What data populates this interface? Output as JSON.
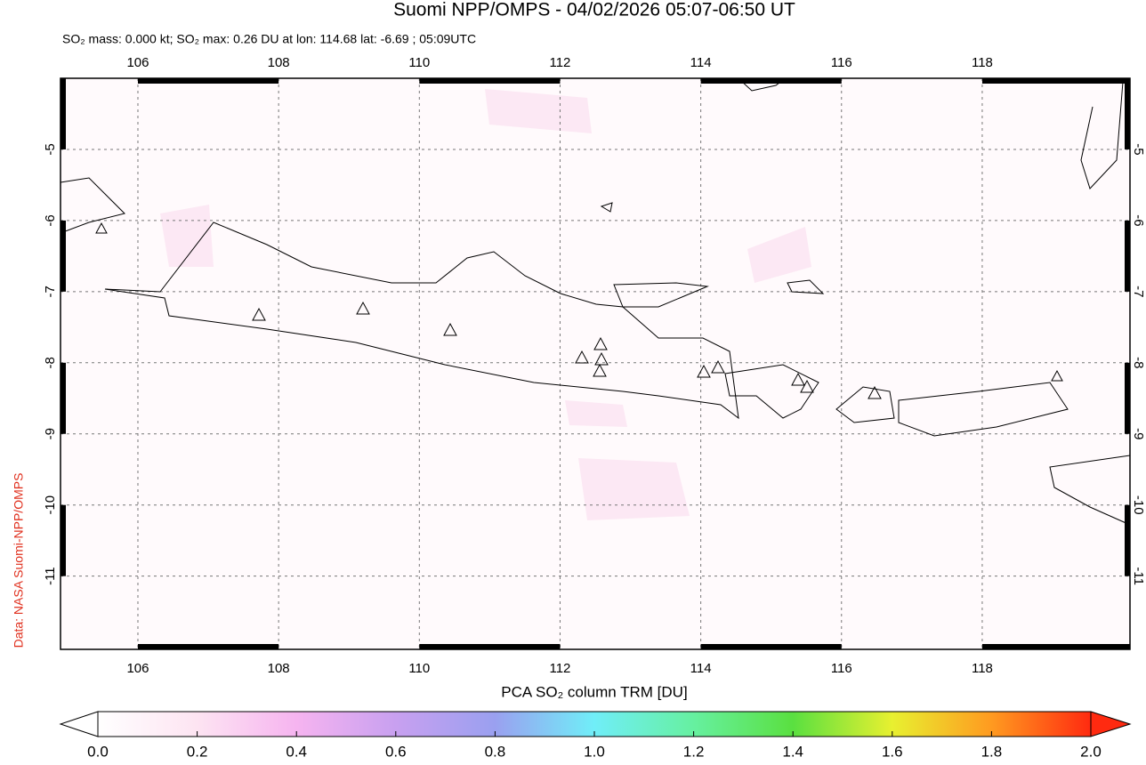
{
  "chart_data": {
    "type": "map",
    "title": "Suomi NPP/OMPS - 04/02/2026 05:07-06:50 UT",
    "subtitle": "SO₂ mass: 0.000 kt; SO₂ max: 0.26 DU at lon: 114.68 lat: -6.69 ; 05:09UTC",
    "side_label": "Data: NASA Suomi-NPP/OMPS",
    "xlim": [
      104.9,
      120.1
    ],
    "ylim": [
      -12.03,
      -4.0
    ],
    "xticks": [
      106,
      108,
      110,
      112,
      114,
      116,
      118
    ],
    "yticks": [
      -5,
      -6,
      -7,
      -8,
      -9,
      -10,
      -11
    ],
    "grid": true,
    "colorbar": {
      "label": "PCA SO₂ column TRM [DU]",
      "lim": [
        0,
        2
      ],
      "ticks": [
        {
          "value": 0,
          "label": "0.0"
        },
        {
          "value": 0.2,
          "label": "0.2"
        },
        {
          "value": 0.4,
          "label": "0.4"
        },
        {
          "value": 0.6,
          "label": "0.6"
        },
        {
          "value": 0.8,
          "label": "0.8"
        },
        {
          "value": 1,
          "label": "1.0"
        },
        {
          "value": 1.2,
          "label": "1.2"
        },
        {
          "value": 1.4,
          "label": "1.4"
        },
        {
          "value": 1.6,
          "label": "1.6"
        },
        {
          "value": 1.8,
          "label": "1.8"
        },
        {
          "value": 2,
          "label": "2.0"
        }
      ]
    }
  }
}
